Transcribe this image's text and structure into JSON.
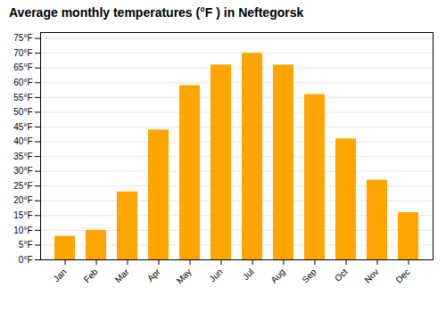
{
  "chart_data": {
    "type": "bar",
    "title": "Average monthly temperatures (°F ) in Neftegorsk",
    "categories": [
      "Jan",
      "Feb",
      "Mar",
      "Apr",
      "May",
      "Jun",
      "Jul",
      "Aug",
      "Sep",
      "Oct",
      "Nov",
      "Dec"
    ],
    "values": [
      8,
      10,
      23,
      44,
      59,
      66,
      70,
      66,
      56,
      41,
      27,
      16
    ],
    "color": "#FFA500",
    "ylim": [
      0,
      77
    ],
    "yticks": [
      {
        "value": 0,
        "label": "0°F"
      },
      {
        "value": 5,
        "label": "5°F"
      },
      {
        "value": 10,
        "label": "10°F"
      },
      {
        "value": 15,
        "label": "15°F"
      },
      {
        "value": 20,
        "label": "20°F"
      },
      {
        "value": 25,
        "label": "25°F"
      },
      {
        "value": 30,
        "label": "30°F"
      },
      {
        "value": 35,
        "label": "35°F"
      },
      {
        "value": 40,
        "label": "40°F"
      },
      {
        "value": 45,
        "label": "45°F"
      },
      {
        "value": 50,
        "label": "50°F"
      },
      {
        "value": 55,
        "label": "55°F"
      },
      {
        "value": 60,
        "label": "60°F"
      },
      {
        "value": 65,
        "label": "65°F"
      },
      {
        "value": 70,
        "label": "70°F"
      },
      {
        "value": 75,
        "label": "75°F"
      }
    ],
    "grid": true
  }
}
